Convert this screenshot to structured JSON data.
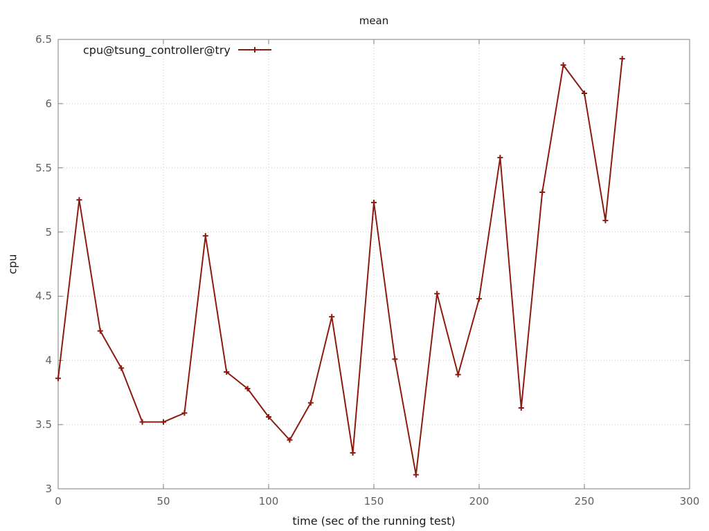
{
  "title": "mean",
  "chart_data": {
    "type": "line",
    "title": "mean",
    "xlabel": "time (sec of the running test)",
    "ylabel": "cpu",
    "xlim": [
      0,
      300
    ],
    "ylim": [
      3,
      6.5
    ],
    "xticks": [
      0,
      50,
      100,
      150,
      200,
      250,
      300
    ],
    "yticks": [
      3,
      3.5,
      4,
      4.5,
      5,
      5.5,
      6,
      6.5
    ],
    "grid": "dotted",
    "legend_position": "top-left-inside",
    "series": [
      {
        "name": "cpu@tsung_controller@try",
        "marker": "plus",
        "color": "#8b1a0e",
        "x": [
          0,
          10,
          20,
          30,
          40,
          50,
          60,
          70,
          80,
          90,
          100,
          110,
          120,
          130,
          140,
          150,
          160,
          170,
          180,
          190,
          200,
          210,
          220,
          230,
          240,
          250,
          260,
          268
        ],
        "y": [
          3.86,
          5.25,
          4.23,
          3.94,
          3.52,
          3.52,
          3.59,
          4.97,
          3.91,
          3.78,
          3.56,
          3.38,
          3.67,
          4.34,
          3.28,
          5.23,
          4.01,
          3.11,
          4.52,
          3.89,
          4.48,
          5.58,
          3.63,
          5.31,
          6.3,
          6.08,
          5.09,
          6.35
        ]
      }
    ],
    "colors": {
      "background": "#ffffff",
      "border": "#7f7f7f",
      "grid": "#c8c8c8",
      "tick_label": "#5e5e5e",
      "text": "#1a1a1a"
    }
  }
}
